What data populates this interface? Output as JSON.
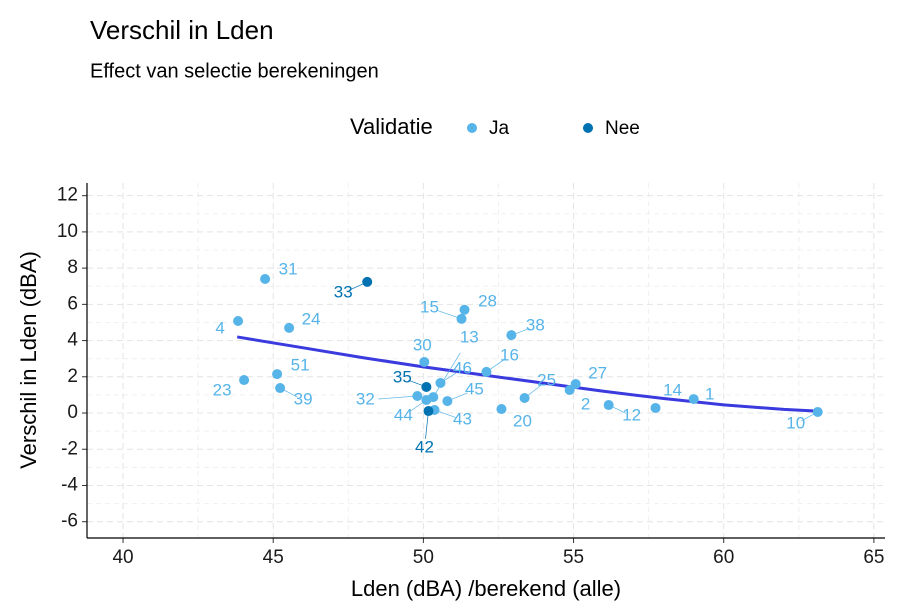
{
  "chart_data": {
    "type": "scatter",
    "title": "Verschil in Lden",
    "subtitle": "Effect van selectie berekeningen",
    "legend_title": "Validatie",
    "x_label": "Lden (dBA) /berekend (alle)",
    "y_label": "Verschil in Lden (dBA)",
    "xlim": [
      38.8,
      65.37
    ],
    "ylim": [
      -6.9,
      12.7
    ],
    "xticks": [
      40,
      45,
      50,
      55,
      60,
      65
    ],
    "yticks": [
      -6,
      -4,
      -2,
      0,
      2,
      4,
      6,
      8,
      10,
      12
    ],
    "grid": true,
    "series": [
      {
        "name": "Ja",
        "color": "#56b4e9",
        "x": [
          44.73,
          43.83,
          45.53,
          51.27,
          51.37,
          52.93,
          50.03,
          50.33,
          50.57,
          52.1,
          45.13,
          44.03,
          45.23,
          49.8,
          50.1,
          50.8,
          50.37,
          52.6,
          53.37,
          55.07,
          54.87,
          56.17,
          57.73,
          59.0,
          63.13
        ],
        "values": [
          7.4,
          5.08,
          4.7,
          5.2,
          5.7,
          4.3,
          2.82,
          0.88,
          1.66,
          2.27,
          2.15,
          1.82,
          1.38,
          0.94,
          0.72,
          0.66,
          0.17,
          0.22,
          0.83,
          1.6,
          1.27,
          0.44,
          0.28,
          0.77,
          0.06
        ],
        "labels": [
          "31",
          "4",
          "24",
          "15",
          "28",
          "38",
          "30",
          "13",
          "46",
          "16",
          "51",
          "23",
          "39",
          "32",
          "44",
          "45",
          "43",
          "20",
          "25",
          "27",
          "2",
          "12",
          "14",
          "1",
          "10"
        ]
      },
      {
        "name": "Nee",
        "color": "#0072b2",
        "x": [
          48.13,
          50.1,
          50.17
        ],
        "values": [
          7.24,
          1.44,
          0.11
        ],
        "labels": [
          "33",
          "35",
          "42"
        ]
      }
    ],
    "trend": {
      "color": "#3a3adf",
      "x": [
        43.8,
        46,
        48,
        50,
        52,
        54,
        56,
        58,
        60,
        62,
        63.2
      ],
      "values": [
        4.2,
        3.6,
        3.05,
        2.55,
        2.1,
        1.65,
        1.2,
        0.8,
        0.45,
        0.2,
        0.1
      ]
    }
  }
}
